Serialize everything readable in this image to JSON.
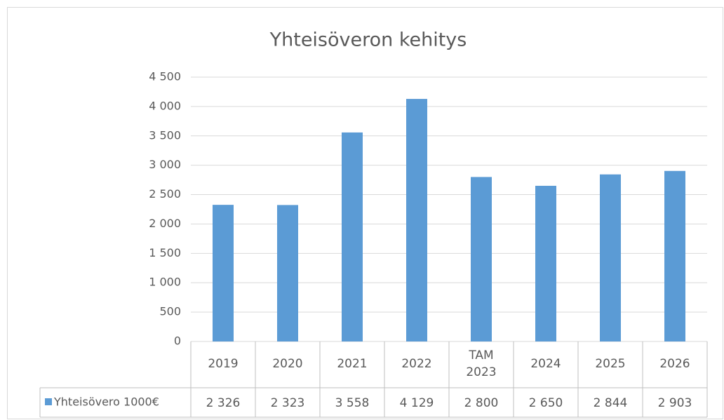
{
  "chart_data": {
    "type": "bar",
    "title": "Yhteisöveron kehitys",
    "categories": [
      "2019",
      "2020",
      "2021",
      "2022",
      "TAM 2023",
      "2024",
      "2025",
      "2026"
    ],
    "series": [
      {
        "name": "Yhteisövero 1000€",
        "color": "#5b9bd5",
        "values": [
          2326,
          2323,
          3558,
          4129,
          2800,
          2650,
          2844,
          2903
        ],
        "value_labels": [
          "2 326",
          "2 323",
          "3 558",
          "4 129",
          "2 800",
          "2 650",
          "2 844",
          "2 903"
        ]
      }
    ],
    "ylim": [
      0,
      4500
    ],
    "yticks": [
      0,
      500,
      {
        "value": 1000,
        "label": "1 000"
      },
      {
        "value": 1500,
        "label": "1 500"
      },
      {
        "value": 2000,
        "label": "2 000"
      },
      {
        "value": 2500,
        "label": "2 500"
      },
      {
        "value": 3000,
        "label": "3 000"
      },
      {
        "value": 3500,
        "label": "3 500"
      },
      {
        "value": 4000,
        "label": "4 000"
      },
      {
        "value": 4500,
        "label": "4 500"
      }
    ],
    "grid": true,
    "legend": "data-table"
  }
}
